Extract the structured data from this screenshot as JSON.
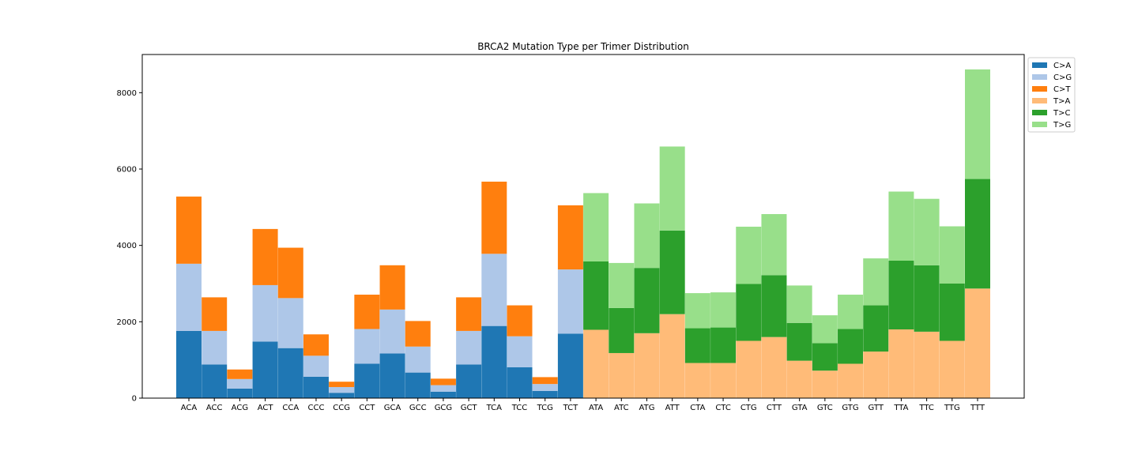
{
  "chart_data": {
    "type": "bar",
    "stacked": true,
    "title": "BRCA2 Mutation Type per Trimer Distribution",
    "xlabel": "",
    "ylabel": "",
    "ylim": [
      0,
      9000
    ],
    "yticks": [
      0,
      2000,
      4000,
      6000,
      8000
    ],
    "grid": false,
    "legend_position": "outside-top-right",
    "categories": [
      "ACA",
      "ACC",
      "ACG",
      "ACT",
      "CCA",
      "CCC",
      "CCG",
      "CCT",
      "GCA",
      "GCC",
      "GCG",
      "GCT",
      "TCA",
      "TCC",
      "TCG",
      "TCT",
      "ATA",
      "ATC",
      "ATG",
      "ATT",
      "CTA",
      "CTC",
      "CTG",
      "CTT",
      "GTA",
      "GTC",
      "GTG",
      "GTT",
      "TTA",
      "TTC",
      "TTG",
      "TTT"
    ],
    "series": [
      {
        "name": "C>A",
        "color": "#1f77b4",
        "values": [
          1760,
          880,
          250,
          1480,
          1310,
          560,
          140,
          900,
          1170,
          670,
          170,
          880,
          1890,
          810,
          190,
          1690,
          0,
          0,
          0,
          0,
          0,
          0,
          0,
          0,
          0,
          0,
          0,
          0,
          0,
          0,
          0,
          0
        ]
      },
      {
        "name": "C>G",
        "color": "#aec7e8",
        "values": [
          1760,
          880,
          250,
          1480,
          1310,
          550,
          150,
          910,
          1150,
          680,
          170,
          880,
          1890,
          810,
          180,
          1680,
          0,
          0,
          0,
          0,
          0,
          0,
          0,
          0,
          0,
          0,
          0,
          0,
          0,
          0,
          0,
          0
        ]
      },
      {
        "name": "C>T",
        "color": "#ff7f0e",
        "values": [
          1760,
          880,
          250,
          1470,
          1320,
          560,
          140,
          900,
          1160,
          670,
          170,
          880,
          1890,
          810,
          180,
          1680,
          0,
          0,
          0,
          0,
          0,
          0,
          0,
          0,
          0,
          0,
          0,
          0,
          0,
          0,
          0,
          0
        ]
      },
      {
        "name": "T>A",
        "color": "#ffbb78",
        "values": [
          0,
          0,
          0,
          0,
          0,
          0,
          0,
          0,
          0,
          0,
          0,
          0,
          0,
          0,
          0,
          0,
          1790,
          1180,
          1700,
          2200,
          920,
          920,
          1500,
          1600,
          980,
          720,
          900,
          1220,
          1800,
          1740,
          1500,
          2870
        ]
      },
      {
        "name": "T>C",
        "color": "#2ca02c",
        "values": [
          0,
          0,
          0,
          0,
          0,
          0,
          0,
          0,
          0,
          0,
          0,
          0,
          0,
          0,
          0,
          0,
          1790,
          1180,
          1710,
          2190,
          910,
          930,
          1490,
          1620,
          990,
          720,
          910,
          1210,
          1800,
          1740,
          1500,
          2870
        ]
      },
      {
        "name": "T>G",
        "color": "#98df8a",
        "values": [
          0,
          0,
          0,
          0,
          0,
          0,
          0,
          0,
          0,
          0,
          0,
          0,
          0,
          0,
          0,
          0,
          1790,
          1180,
          1690,
          2200,
          920,
          920,
          1500,
          1600,
          980,
          730,
          900,
          1230,
          1810,
          1740,
          1500,
          2870
        ]
      }
    ]
  }
}
